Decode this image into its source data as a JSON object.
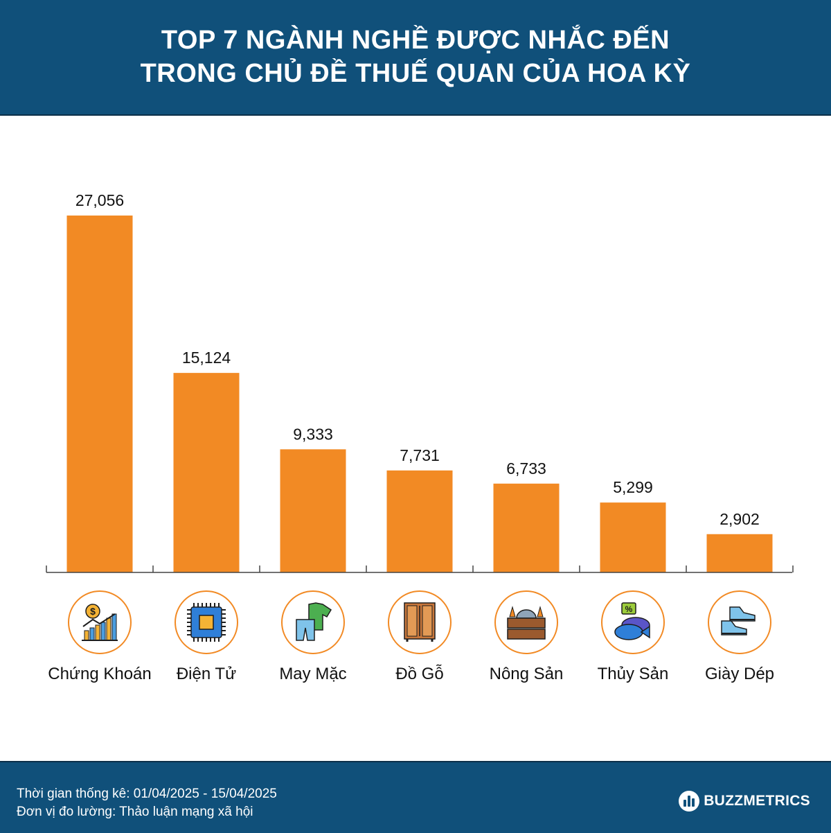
{
  "header": {
    "title_line1": "TOP 7 NGÀNH NGHỀ ĐƯỢC NHẮC ĐẾN",
    "title_line2": "TRONG CHỦ ĐỀ THUẾ QUAN CỦA HOA KỲ"
  },
  "chart_data": {
    "type": "bar",
    "categories": [
      "Chứng Khoán",
      "Điện Tử",
      "May Mặc",
      "Đồ Gỗ",
      "Nông Sản",
      "Thủy Sản",
      "Giày Dép"
    ],
    "values": [
      27056,
      15124,
      9333,
      7731,
      6733,
      5299,
      2902
    ],
    "value_labels": [
      "27,056",
      "15,124",
      "9,333",
      "7,731",
      "6,733",
      "5,299",
      "2,902"
    ],
    "icons": [
      "stock-chart-icon",
      "microchip-icon",
      "clothing-icon",
      "wooden-cabinet-icon",
      "produce-crate-icon",
      "fish-icon",
      "sneakers-icon"
    ],
    "ylim": [
      0,
      27056
    ],
    "bar_color": "#f28a24",
    "icon_ring_color": "#f28a24",
    "grid": false,
    "legend": "none"
  },
  "footer": {
    "period": "Thời gian thống kê: 01/04/2025 - 15/04/2025",
    "unit": "Đơn vị đo lường: Thảo luận mạng xã hội",
    "brand": "BUZZMETRICS"
  },
  "colors": {
    "header_bg": "#10507a",
    "bar": "#f28a24",
    "text": "#111111"
  }
}
